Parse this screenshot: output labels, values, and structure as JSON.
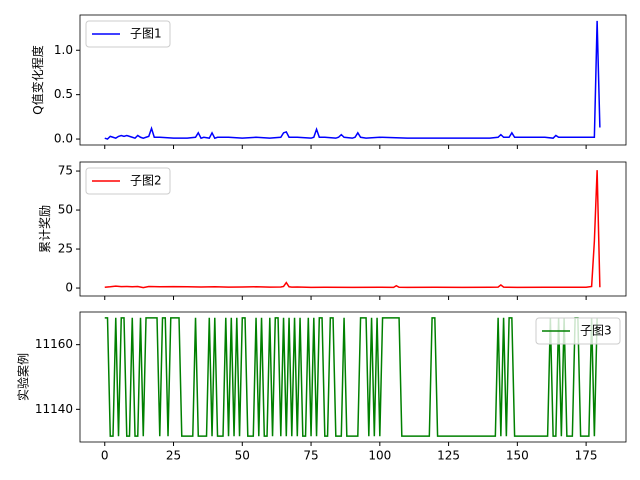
{
  "chart_data": [
    {
      "type": "line",
      "ylabel": "Q值变化程度",
      "legend": "upper left",
      "x": [
        0,
        1,
        2,
        3,
        4,
        5,
        6,
        7,
        8,
        9,
        10,
        11,
        12,
        13,
        14,
        15,
        16,
        17,
        18,
        19,
        20,
        25,
        30,
        33,
        34,
        35,
        36,
        38,
        39,
        40,
        41,
        45,
        50,
        55,
        60,
        64,
        65,
        66,
        67,
        70,
        75,
        76,
        77,
        78,
        80,
        84,
        85,
        86,
        87,
        90,
        91,
        92,
        93,
        95,
        100,
        110,
        120,
        130,
        140,
        143,
        144,
        145,
        147,
        148,
        149,
        155,
        160,
        163,
        164,
        165,
        170,
        175,
        178,
        179,
        180
      ],
      "series": [
        {
          "name": "子图1",
          "color": "#0000ff",
          "values": [
            0.01,
            0.0,
            0.03,
            0.02,
            0.01,
            0.03,
            0.04,
            0.03,
            0.04,
            0.03,
            0.02,
            0.01,
            0.04,
            0.02,
            0.01,
            0.02,
            0.03,
            0.12,
            0.02,
            0.02,
            0.02,
            0.01,
            0.01,
            0.02,
            0.07,
            0.01,
            0.02,
            0.01,
            0.07,
            0.01,
            0.02,
            0.02,
            0.01,
            0.02,
            0.01,
            0.02,
            0.07,
            0.08,
            0.02,
            0.02,
            0.01,
            0.02,
            0.11,
            0.02,
            0.02,
            0.01,
            0.02,
            0.05,
            0.02,
            0.01,
            0.02,
            0.07,
            0.02,
            0.01,
            0.02,
            0.01,
            0.01,
            0.01,
            0.01,
            0.02,
            0.05,
            0.02,
            0.02,
            0.07,
            0.02,
            0.02,
            0.02,
            0.01,
            0.04,
            0.02,
            0.02,
            0.02,
            0.02,
            1.33,
            0.13
          ]
        }
      ],
      "xlim": [
        -9,
        189.5
      ],
      "ylim": [
        -0.067,
        1.397
      ],
      "yticks": [
        {
          "value": 0,
          "label": "0.0"
        },
        {
          "value": 0.5,
          "label": "0.5"
        },
        {
          "value": 1,
          "label": "1.0"
        }
      ]
    },
    {
      "type": "line",
      "ylabel": "累计奖励",
      "legend": "upper left",
      "x": [
        0,
        2,
        4,
        6,
        8,
        10,
        12,
        14,
        16,
        20,
        25,
        30,
        35,
        40,
        45,
        50,
        55,
        60,
        64,
        65,
        66,
        67,
        68,
        70,
        75,
        80,
        90,
        100,
        105,
        106,
        107,
        110,
        120,
        130,
        140,
        143,
        144,
        145,
        146,
        150,
        160,
        170,
        175,
        177,
        178,
        179,
        180
      ],
      "series": [
        {
          "name": "子图2",
          "color": "#ff0000",
          "values": [
            0.5,
            0.8,
            1.2,
            0.9,
            1.0,
            0.8,
            1.0,
            0.3,
            1.0,
            0.8,
            0.9,
            0.8,
            0.7,
            0.8,
            0.6,
            0.7,
            0.8,
            0.6,
            0.7,
            1.0,
            3.5,
            0.8,
            0.6,
            0.7,
            0.4,
            0.5,
            0.4,
            0.5,
            0.4,
            1.5,
            0.5,
            0.4,
            0.5,
            0.4,
            0.5,
            0.6,
            2.0,
            0.6,
            0.5,
            0.4,
            0.5,
            0.5,
            0.5,
            1.0,
            30,
            75.6,
            0.5
          ]
        }
      ],
      "xlim": [
        -9,
        189.5
      ],
      "ylim": [
        -5.1,
        80.8
      ],
      "yticks": [
        0,
        25,
        50,
        75
      ]
    },
    {
      "type": "line",
      "ylabel": "实验案例",
      "legend": "upper right",
      "x": [
        0,
        1,
        2,
        3,
        4,
        5,
        6,
        7,
        8,
        9,
        10,
        11,
        12,
        13,
        14,
        15,
        16,
        17,
        18,
        19,
        20,
        21,
        22,
        23,
        24,
        25,
        26,
        27,
        28,
        29,
        30,
        31,
        32,
        33,
        34,
        35,
        36,
        37,
        38,
        39,
        40,
        41,
        42,
        43,
        44,
        45,
        46,
        47,
        48,
        49,
        50,
        51,
        52,
        53,
        54,
        55,
        56,
        57,
        58,
        59,
        60,
        61,
        62,
        63,
        64,
        65,
        66,
        67,
        68,
        69,
        70,
        71,
        72,
        73,
        74,
        75,
        76,
        77,
        78,
        79,
        80,
        81,
        82,
        83,
        84,
        85,
        86,
        87,
        88,
        89,
        90,
        91,
        92,
        93,
        94,
        95,
        96,
        97,
        98,
        99,
        100,
        101,
        102,
        103,
        104,
        105,
        106,
        107,
        108,
        118,
        119,
        120,
        121,
        142,
        143,
        144,
        145,
        146,
        147,
        148,
        149,
        161,
        162,
        163,
        164,
        165,
        166,
        167,
        168,
        169,
        170,
        171,
        172,
        173,
        174,
        175,
        176,
        177,
        178,
        179
      ],
      "series": [
        {
          "name": "子图3",
          "color": "#008000",
          "values": [
            11168.3,
            11168.3,
            11131.7,
            11131.7,
            11168.3,
            11131.7,
            11168.3,
            11168.3,
            11131.7,
            11131.7,
            11168.3,
            11131.7,
            11131.7,
            11168.3,
            11131.7,
            11168.3,
            11168.3,
            11168.3,
            11168.3,
            11168.3,
            11131.7,
            11168.3,
            11168.3,
            11131.7,
            11168.3,
            11168.3,
            11168.3,
            11168.3,
            11131.7,
            11131.7,
            11131.7,
            11131.7,
            11131.7,
            11168.3,
            11131.7,
            11131.7,
            11131.7,
            11131.7,
            11168.3,
            11131.7,
            11168.3,
            11131.7,
            11131.7,
            11131.7,
            11168.3,
            11131.7,
            11168.3,
            11131.7,
            11168.3,
            11131.7,
            11168.3,
            11168.3,
            11131.7,
            11131.7,
            11131.7,
            11168.3,
            11131.7,
            11168.3,
            11131.7,
            11131.7,
            11168.3,
            11131.7,
            11168.3,
            11168.3,
            11131.7,
            11168.3,
            11131.7,
            11168.3,
            11131.7,
            11168.3,
            11131.7,
            11168.3,
            11131.7,
            11131.7,
            11168.3,
            11131.7,
            11168.3,
            11131.7,
            11168.3,
            11168.3,
            11131.7,
            11131.7,
            11168.3,
            11168.3,
            11131.7,
            11131.7,
            11131.7,
            11168.3,
            11131.7,
            11131.7,
            11131.7,
            11131.7,
            11131.7,
            11168.3,
            11168.3,
            11168.3,
            11131.7,
            11168.3,
            11131.7,
            11168.3,
            11131.7,
            11168.3,
            11168.3,
            11168.3,
            11168.3,
            11168.3,
            11168.3,
            11168.3,
            11131.7,
            11131.7,
            11168.3,
            11168.3,
            11131.7,
            11131.7,
            11168.3,
            11131.7,
            11168.3,
            11131.7,
            11168.3,
            11168.3,
            11131.7,
            11131.7,
            11168.3,
            11131.7,
            11131.7,
            11168.3,
            11131.7,
            11168.3,
            11131.7,
            11131.7,
            11131.7,
            11168.3,
            11168.3,
            11131.7,
            11131.7,
            11131.7,
            11131.7,
            11168.3,
            11131.7,
            11168.3
          ]
        }
      ],
      "xlim": [
        -9,
        189.5
      ],
      "ylim": [
        11129.9,
        11170.1
      ],
      "yticks": [
        11140,
        11160
      ],
      "xticks": [
        0,
        25,
        50,
        75,
        100,
        125,
        150,
        175
      ]
    }
  ]
}
